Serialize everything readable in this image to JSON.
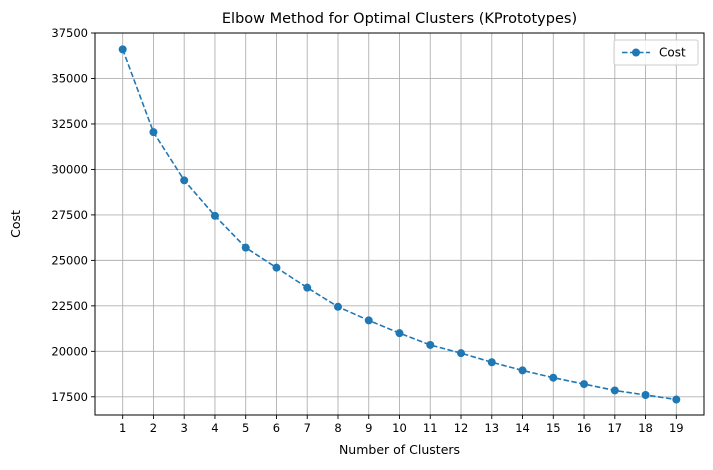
{
  "chart_data": {
    "type": "line",
    "title": "Elbow Method for Optimal Clusters (KPrototypes)",
    "xlabel": "Number of Clusters",
    "ylabel": "Cost",
    "x": [
      1,
      2,
      3,
      4,
      5,
      6,
      7,
      8,
      9,
      10,
      11,
      12,
      13,
      14,
      15,
      16,
      17,
      18,
      19
    ],
    "series": [
      {
        "name": "Cost",
        "values": [
          36600,
          32050,
          29400,
          27450,
          25700,
          24600,
          23500,
          22450,
          21700,
          21000,
          20350,
          19900,
          19400,
          18950,
          18550,
          18200,
          17850,
          17600,
          17350
        ],
        "color": "#1f77b4",
        "line_style": "dashed",
        "marker": "circle"
      }
    ],
    "xlim": [
      0.1,
      19.9
    ],
    "ylim": [
      16500,
      37500
    ],
    "x_ticks": [
      1,
      2,
      3,
      4,
      5,
      6,
      7,
      8,
      9,
      10,
      11,
      12,
      13,
      14,
      15,
      16,
      17,
      18,
      19
    ],
    "y_ticks": [
      17500,
      20000,
      22500,
      25000,
      27500,
      30000,
      32500,
      35000,
      37500
    ],
    "grid": true,
    "legend_position": "top-right"
  }
}
